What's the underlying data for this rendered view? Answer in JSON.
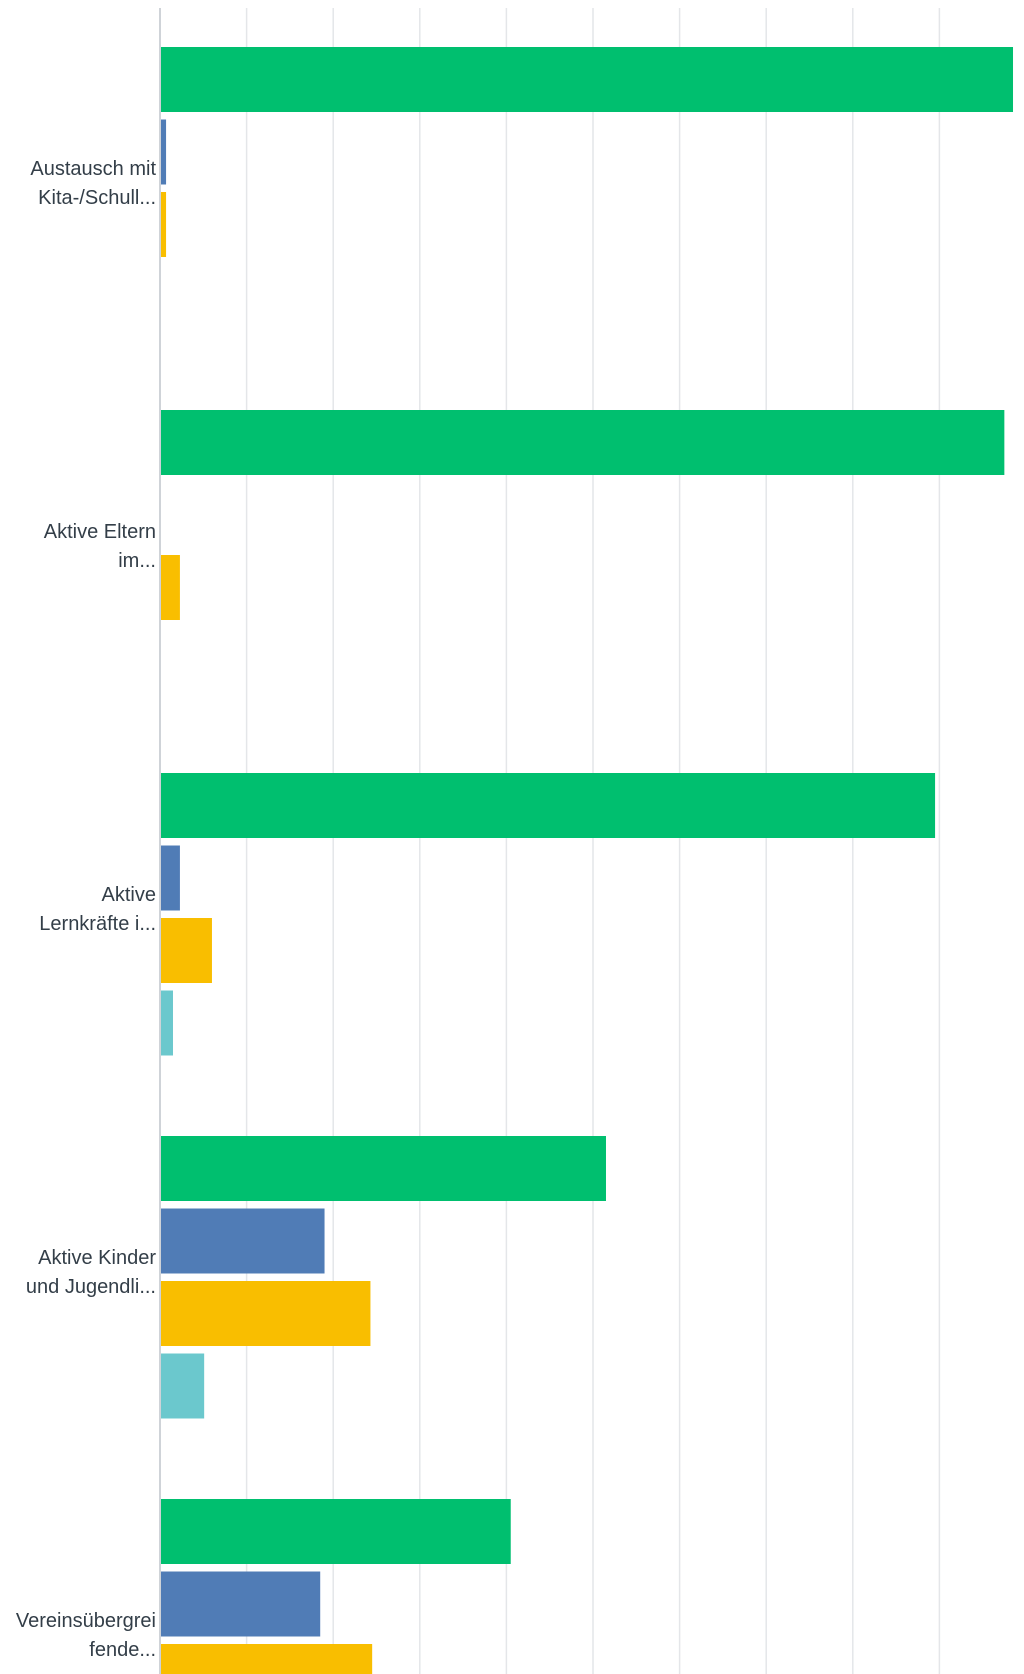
{
  "chart_data": {
    "type": "bar",
    "orientation": "horizontal",
    "title": "",
    "xlabel": "",
    "ylabel": "",
    "xlim": [
      0,
      100
    ],
    "grid": true,
    "legend": "none",
    "categories": [
      [
        "Austausch mit",
        "Kita-/Schull..."
      ],
      [
        "Aktive Eltern",
        "im..."
      ],
      [
        "Aktive",
        "Lernkräfte i..."
      ],
      [
        "Aktive Kinder",
        "und Jugendli..."
      ],
      [
        "Vereinsübergrei",
        "fende..."
      ]
    ],
    "series": [
      {
        "color": "#00bf6f",
        "values": [
          98.5,
          97.5,
          89.5,
          51.5,
          40.5
        ]
      },
      {
        "color": "#507cb6",
        "values": [
          0.7,
          0.0,
          2.3,
          19.0,
          18.5
        ]
      },
      {
        "color": "#f9be00",
        "values": [
          0.7,
          2.3,
          6.0,
          24.3,
          24.5
        ]
      },
      {
        "color": "#6bc8cd",
        "values": [
          0.0,
          0.0,
          1.5,
          5.1,
          0.0
        ]
      }
    ]
  }
}
